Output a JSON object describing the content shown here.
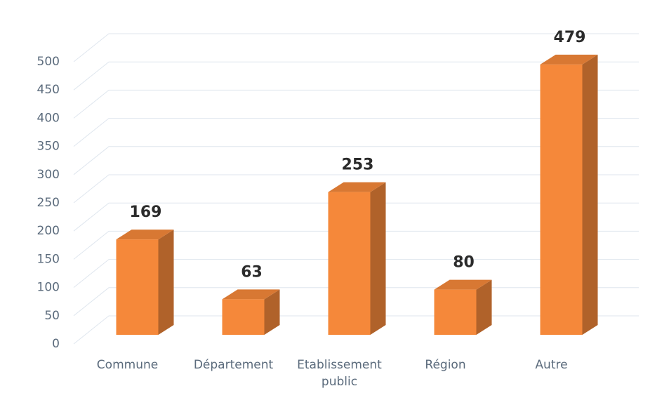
{
  "chart_data": {
    "type": "bar3d",
    "categories": [
      "Commune",
      "Département",
      "Etablissement public",
      "Région",
      "Autre"
    ],
    "values": [
      169,
      63,
      253,
      80,
      479
    ],
    "color": "#f5883a",
    "ylim": [
      0,
      500
    ],
    "yticks": [
      0,
      50,
      100,
      150,
      200,
      250,
      300,
      350,
      400,
      450,
      500
    ],
    "grid": true
  }
}
